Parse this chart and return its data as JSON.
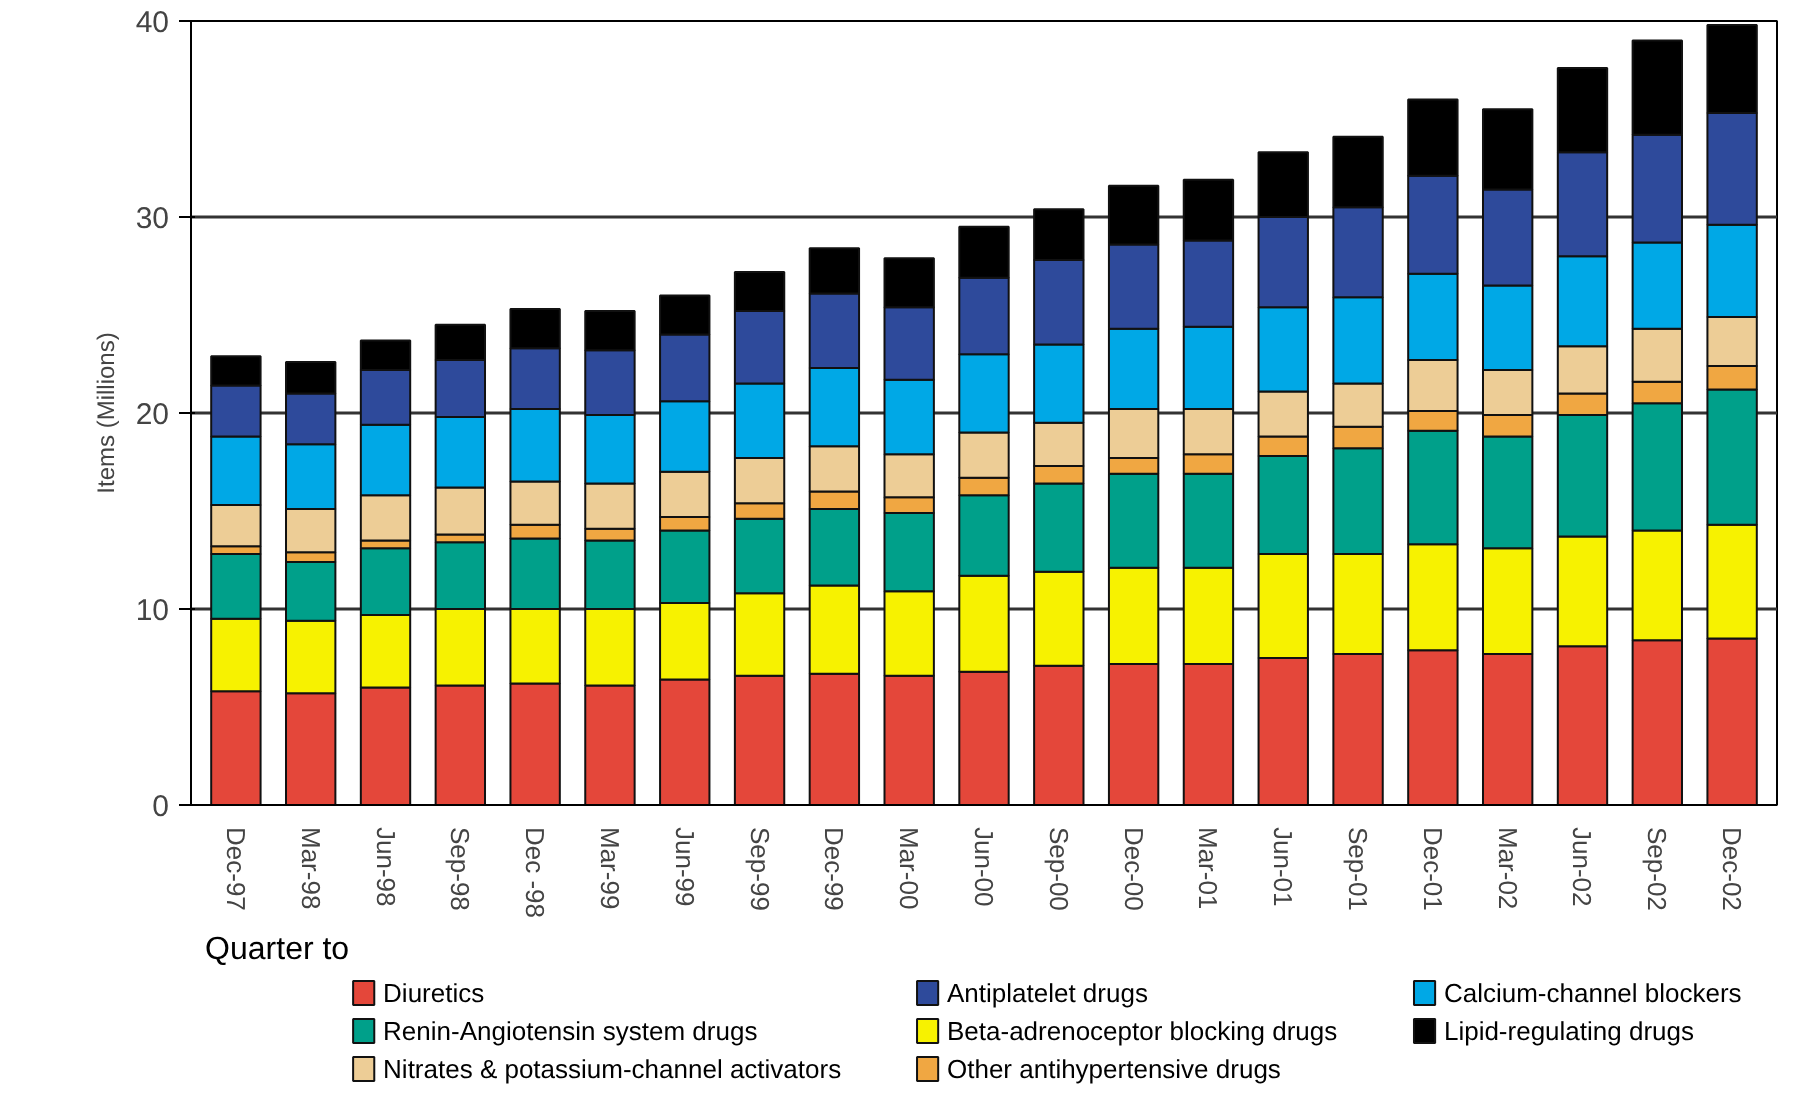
{
  "chart_data": {
    "type": "bar",
    "stacked": true,
    "xlabel": "Quarter to",
    "ylabel": "Items (Millions)",
    "categories": [
      "Dec-97",
      "Mar-98",
      "Jun-98",
      "Sep-98",
      "Dec -98",
      "Mar-99",
      "Jun-99",
      "Sep-99",
      "Dec-99",
      "Mar-00",
      "Jun-00",
      "Sep-00",
      "Dec-00",
      "Mar-01",
      "Jun-01",
      "Sep-01",
      "Dec-01",
      "Mar-02",
      "Jun-02",
      "Sep-02",
      "Dec-02"
    ],
    "ylim": [
      0,
      40
    ],
    "yticks": [
      0,
      10,
      20,
      30,
      40
    ],
    "grid": "y",
    "legend": "bottom",
    "series": [
      {
        "name": "Diuretics",
        "color": "#e4473a",
        "values": [
          5.8,
          5.7,
          6.0,
          6.1,
          6.2,
          6.1,
          6.4,
          6.6,
          6.7,
          6.6,
          6.8,
          7.1,
          7.2,
          7.2,
          7.5,
          7.7,
          7.9,
          7.7,
          8.1,
          8.4,
          8.5
        ]
      },
      {
        "name": "Beta-adrenoceptor blocking drugs",
        "color": "#f7f200",
        "values": [
          3.7,
          3.7,
          3.7,
          3.9,
          3.8,
          3.9,
          3.9,
          4.2,
          4.5,
          4.3,
          4.9,
          4.8,
          4.9,
          4.9,
          5.3,
          5.1,
          5.4,
          5.4,
          5.6,
          5.6,
          5.8
        ]
      },
      {
        "name": "Renin-Angiotensin system drugs",
        "color": "#00a08a",
        "values": [
          3.3,
          3.0,
          3.4,
          3.4,
          3.6,
          3.5,
          3.7,
          3.8,
          3.9,
          4.0,
          4.1,
          4.5,
          4.8,
          4.8,
          5.0,
          5.4,
          5.8,
          5.7,
          6.2,
          6.5,
          6.9
        ]
      },
      {
        "name": "Other antihypertensive drugs",
        "color": "#f0a742",
        "values": [
          0.4,
          0.5,
          0.4,
          0.4,
          0.7,
          0.6,
          0.7,
          0.8,
          0.9,
          0.8,
          0.9,
          0.9,
          0.8,
          1.0,
          1.0,
          1.1,
          1.0,
          1.1,
          1.1,
          1.1,
          1.2
        ]
      },
      {
        "name": "Nitrates & potassium-channel activators",
        "color": "#edcd96",
        "values": [
          2.1,
          2.2,
          2.3,
          2.4,
          2.2,
          2.3,
          2.3,
          2.3,
          2.3,
          2.2,
          2.3,
          2.2,
          2.5,
          2.3,
          2.3,
          2.2,
          2.6,
          2.3,
          2.4,
          2.7,
          2.5
        ]
      },
      {
        "name": "Calcium-channel blockers",
        "color": "#00a8e6",
        "values": [
          3.5,
          3.3,
          3.6,
          3.6,
          3.7,
          3.5,
          3.6,
          3.8,
          4.0,
          3.8,
          4.0,
          4.0,
          4.1,
          4.2,
          4.3,
          4.4,
          4.4,
          4.3,
          4.6,
          4.4,
          4.7
        ]
      },
      {
        "name": "Antiplatelet drugs",
        "color": "#2e4a9b",
        "values": [
          2.6,
          2.6,
          2.8,
          2.9,
          3.1,
          3.3,
          3.4,
          3.7,
          3.8,
          3.7,
          3.9,
          4.3,
          4.3,
          4.4,
          4.6,
          4.6,
          5.0,
          4.9,
          5.3,
          5.5,
          5.7
        ]
      },
      {
        "name": "Lipid-regulating drugs",
        "color": "#000000",
        "values": [
          1.5,
          1.6,
          1.5,
          1.8,
          2.0,
          2.0,
          2.0,
          2.0,
          2.3,
          2.5,
          2.6,
          2.6,
          3.0,
          3.1,
          3.3,
          3.6,
          3.9,
          4.1,
          4.3,
          4.8,
          4.5
        ]
      }
    ]
  }
}
